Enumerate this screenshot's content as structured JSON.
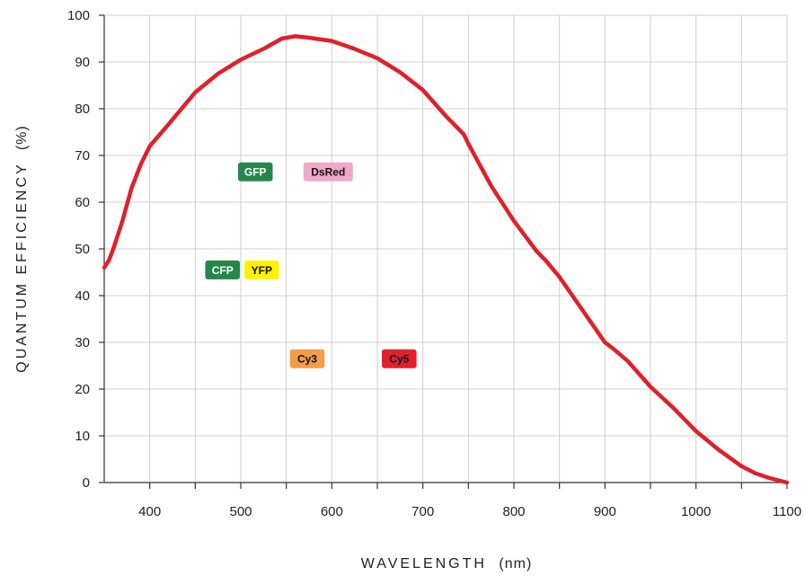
{
  "chart_data": {
    "type": "line",
    "xlabel": "WAVELENGTH",
    "xlabel_unit": "(nm)",
    "ylabel": "QUANTUM EFFICIENCY",
    "ylabel_unit": "(%)",
    "xlim": [
      350,
      1100
    ],
    "ylim": [
      0,
      100
    ],
    "x_ticks": [
      400,
      500,
      600,
      700,
      800,
      900,
      1000,
      1100
    ],
    "y_ticks": [
      0,
      10,
      20,
      30,
      40,
      50,
      60,
      70,
      80,
      90,
      100
    ],
    "grid": true,
    "series": [
      {
        "color": "#e0202b",
        "x": [
          350,
          355,
          360,
          370,
          380,
          390,
          400,
          420,
          450,
          475,
          500,
          525,
          545,
          550,
          560,
          575,
          600,
          625,
          650,
          675,
          700,
          725,
          745,
          750,
          775,
          800,
          825,
          835,
          850,
          875,
          900,
          910,
          925,
          950,
          975,
          1000,
          1025,
          1050,
          1065,
          1080,
          1100
        ],
        "y": [
          46,
          47.5,
          50,
          56,
          63,
          68,
          72,
          76.5,
          83.5,
          87.5,
          90.5,
          92.8,
          95,
          95.2,
          95.5,
          95.2,
          94.5,
          92.8,
          90.8,
          87.8,
          84,
          78.5,
          74.5,
          72.5,
          63.5,
          56,
          49.5,
          47.5,
          44,
          37,
          30,
          28.5,
          26,
          20.5,
          16,
          11,
          7,
          3.5,
          2,
          1,
          0
        ]
      }
    ],
    "annotations": [
      {
        "label": "GFP",
        "x": 516,
        "y": 66.5,
        "bg": "#25884a",
        "fg": "#ffffff"
      },
      {
        "label": "DsRed",
        "x": 596,
        "y": 66.5,
        "bg": "#f1a7c8",
        "fg": "#111111"
      },
      {
        "label": "CFP",
        "x": 480,
        "y": 45.5,
        "bg": "#25884a",
        "fg": "#ffffff"
      },
      {
        "label": "YFP",
        "x": 523,
        "y": 45.5,
        "bg": "#fff200",
        "fg": "#111111"
      },
      {
        "label": "Cy3",
        "x": 573,
        "y": 26.5,
        "bg": "#f39c4a",
        "fg": "#111111"
      },
      {
        "label": "Cy5",
        "x": 674,
        "y": 26.5,
        "bg": "#e0202b",
        "fg": "#111111"
      }
    ]
  }
}
